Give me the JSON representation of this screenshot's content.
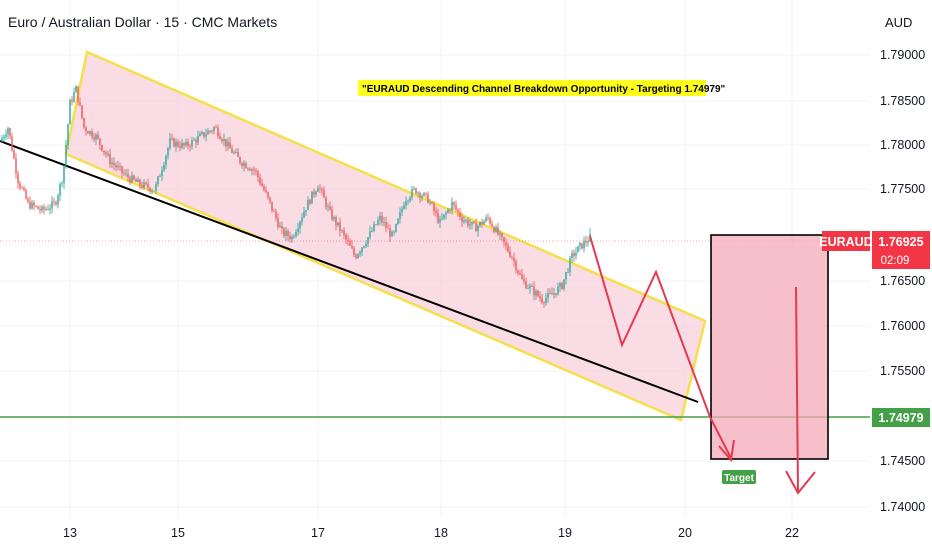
{
  "chart_data": {
    "type": "candlestick",
    "title": "Euro / Australian Dollar · 15 · CMC Markets",
    "currency": "AUD",
    "symbol": "EURAUD",
    "last_price": "1.76925",
    "countdown": "02:09",
    "target_price_label": "1.74979",
    "target_label": "Target",
    "annotation": "\"EURAUD Descending Channel Breakdown Opportunity - Targeting 1.74979\"",
    "ylim": [
      1.7392,
      1.7945
    ],
    "y_ticks": [
      "1.79000",
      "1.78500",
      "1.78000",
      "1.77500",
      "1.76500",
      "1.76000",
      "1.75500",
      "1.74500",
      "1.74000"
    ],
    "x_ticks": [
      "13",
      "15",
      "17",
      "18",
      "19",
      "20",
      "22"
    ],
    "price_path": [
      [
        0,
        1.78
      ],
      [
        8,
        1.7815
      ],
      [
        18,
        1.776
      ],
      [
        28,
        1.7735
      ],
      [
        42,
        1.7728
      ],
      [
        55,
        1.7735
      ],
      [
        63,
        1.7765
      ],
      [
        70,
        1.784
      ],
      [
        76,
        1.7855
      ],
      [
        84,
        1.7815
      ],
      [
        96,
        1.7805
      ],
      [
        110,
        1.778
      ],
      [
        125,
        1.7765
      ],
      [
        140,
        1.7755
      ],
      [
        155,
        1.775
      ],
      [
        170,
        1.78
      ],
      [
        185,
        1.7795
      ],
      [
        200,
        1.7805
      ],
      [
        215,
        1.7815
      ],
      [
        228,
        1.7795
      ],
      [
        240,
        1.778
      ],
      [
        255,
        1.777
      ],
      [
        268,
        1.774
      ],
      [
        282,
        1.7705
      ],
      [
        292,
        1.77
      ],
      [
        305,
        1.773
      ],
      [
        318,
        1.7755
      ],
      [
        330,
        1.7725
      ],
      [
        342,
        1.7705
      ],
      [
        355,
        1.768
      ],
      [
        368,
        1.77
      ],
      [
        380,
        1.772
      ],
      [
        393,
        1.77
      ],
      [
        405,
        1.774
      ],
      [
        415,
        1.775
      ],
      [
        428,
        1.774
      ],
      [
        440,
        1.7715
      ],
      [
        452,
        1.7735
      ],
      [
        462,
        1.772
      ],
      [
        475,
        1.771
      ],
      [
        488,
        1.772
      ],
      [
        500,
        1.77
      ],
      [
        512,
        1.768
      ],
      [
        522,
        1.7655
      ],
      [
        532,
        1.7645
      ],
      [
        542,
        1.7635
      ],
      [
        552,
        1.764
      ],
      [
        562,
        1.765
      ],
      [
        572,
        1.768
      ],
      [
        580,
        1.769
      ],
      [
        590,
        1.77
      ]
    ],
    "colors": {
      "up": "#26a69a",
      "down": "#ef5350",
      "channel_fill": "#f8d0dc",
      "channel_border": "#f5e04a",
      "trendline": "#000000",
      "support": "#43a047",
      "projection": "#e53950",
      "target_box_fill": "#f4a9b7",
      "target_box_border": "#000000",
      "price_tag": "#f23645",
      "support_tag": "#43a047",
      "annotation_bg": "#ffff1a"
    }
  }
}
